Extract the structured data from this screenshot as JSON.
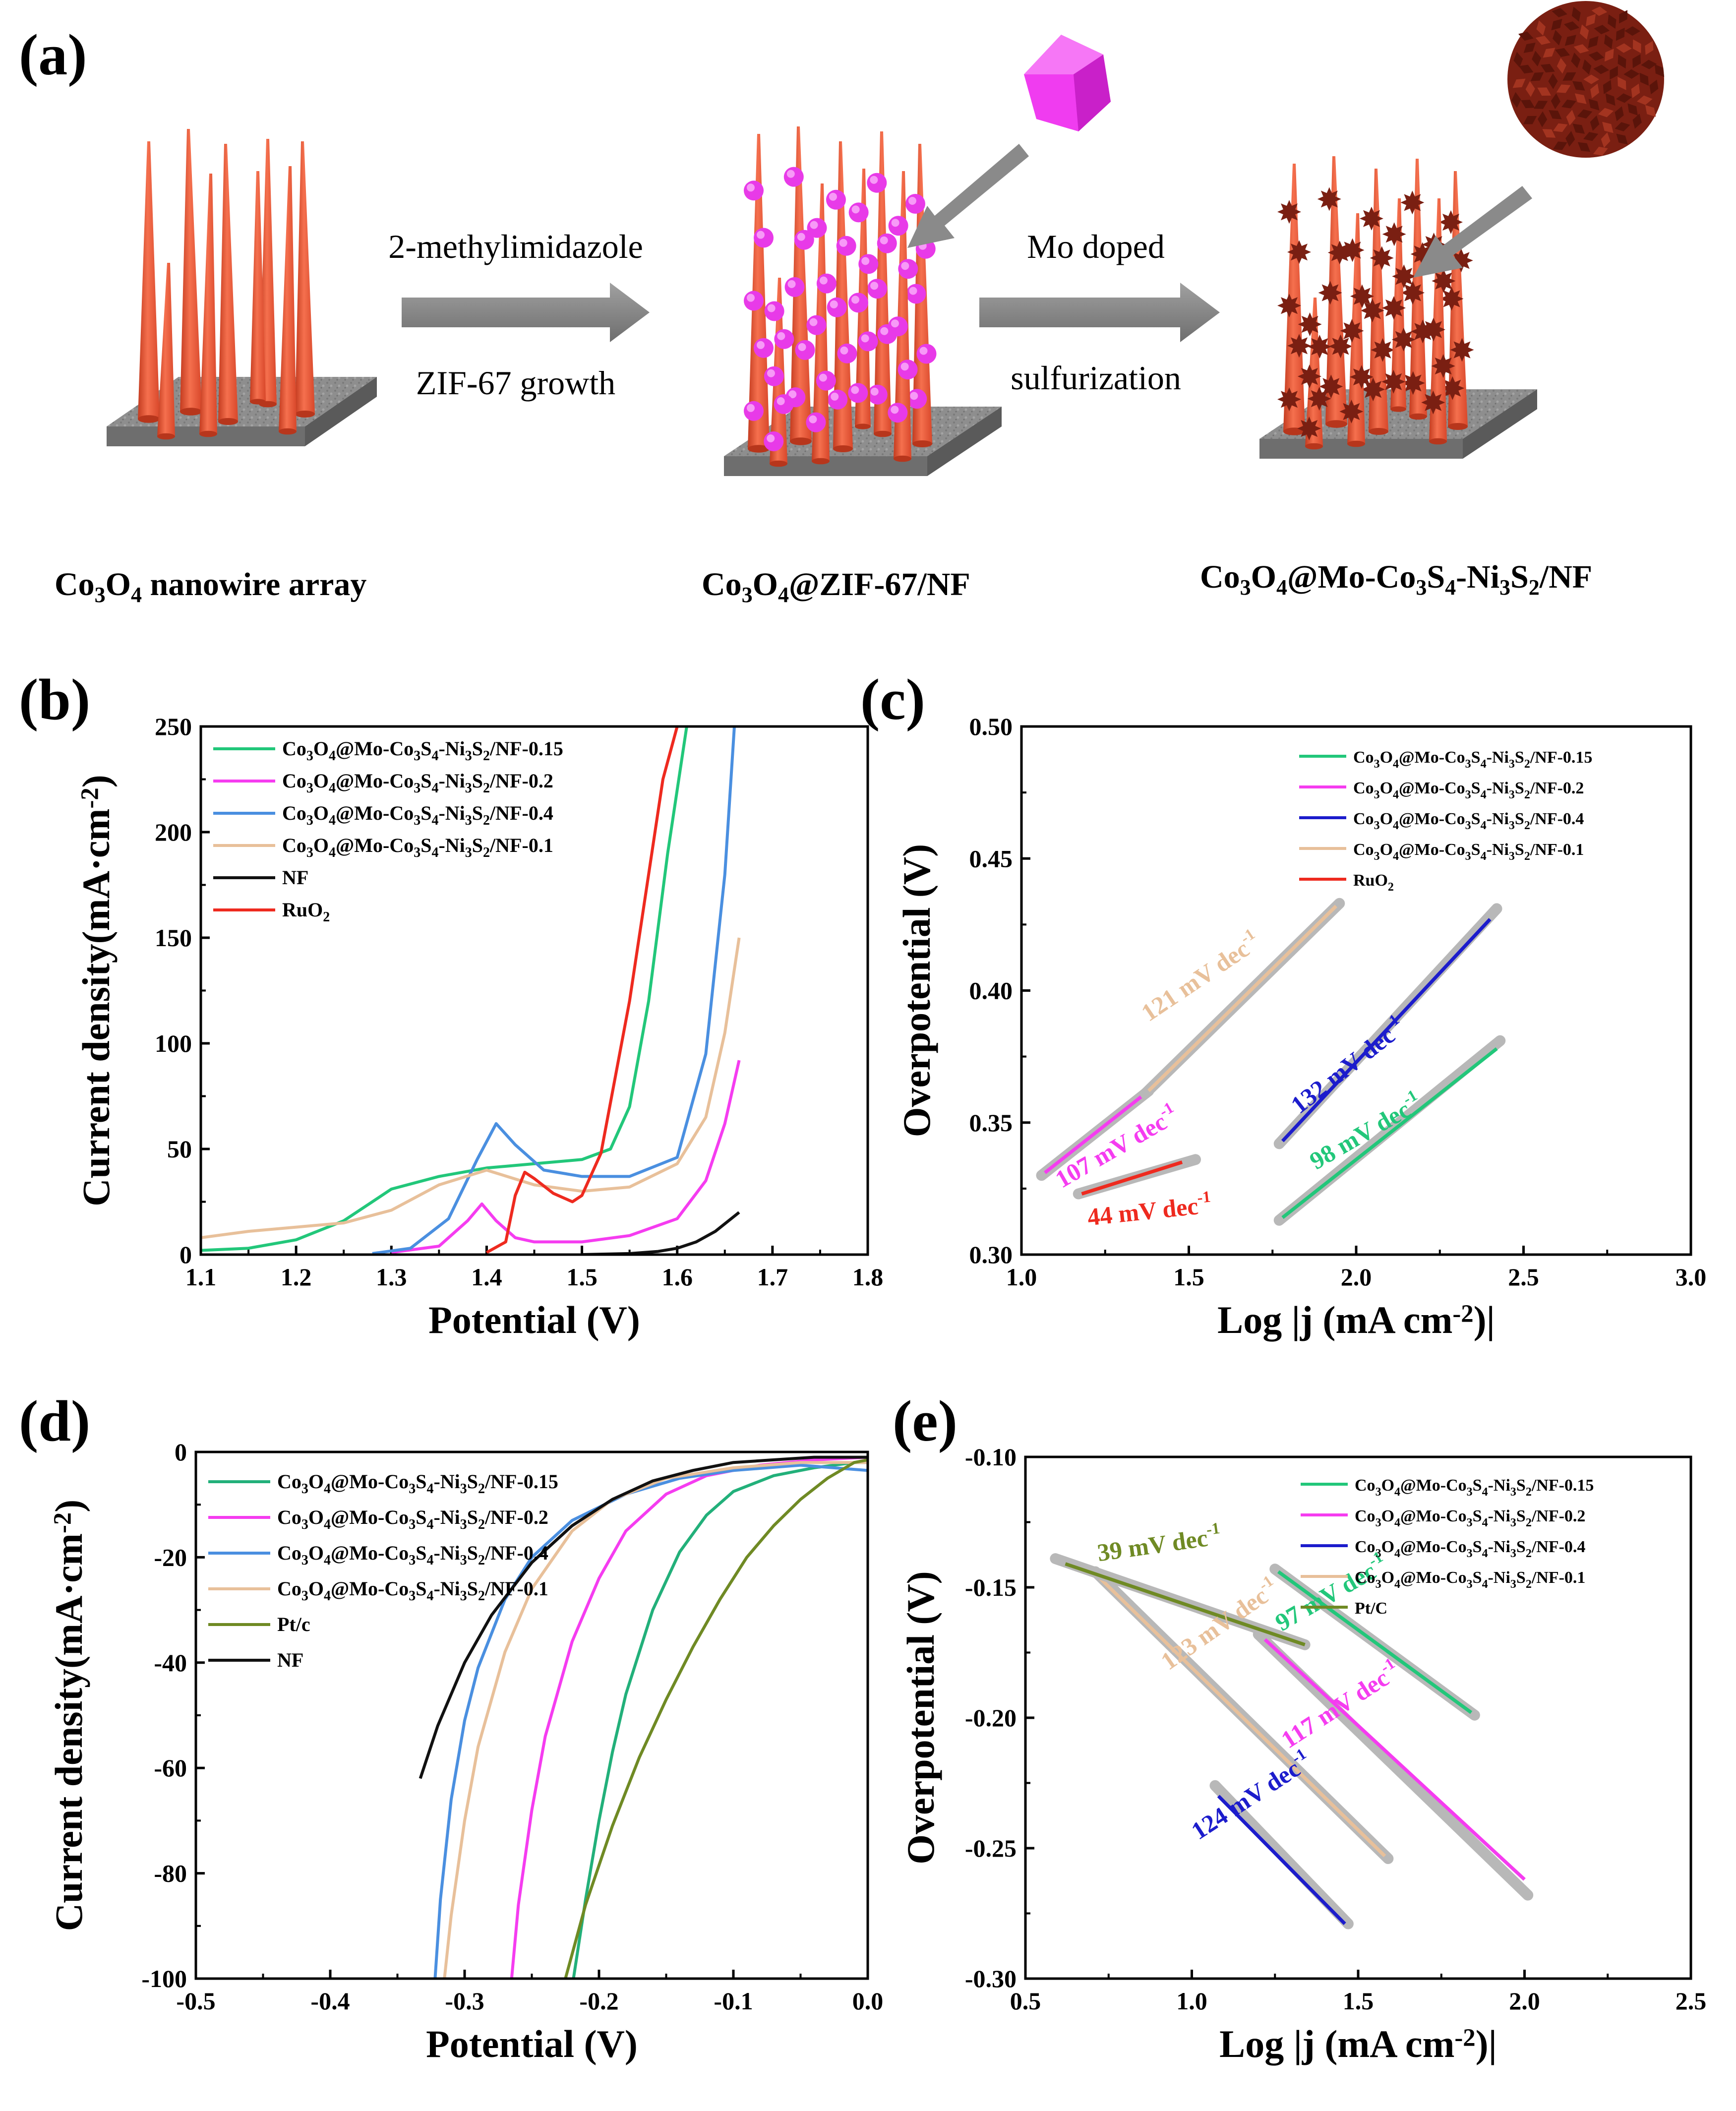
{
  "scheme": {
    "panel": "(a)",
    "label_1": "Co3O4 nanowire array",
    "label_2": "Co3O4@ZIF-67/NF",
    "label_3": "Co3O4@Mo-Co3S4-Ni3S2/NF",
    "arrow1_top": "2-methylimidazole",
    "arrow1_bottom": "ZIF-67 growth",
    "arrow2_top": "Mo doped",
    "arrow2_bottom": "sulfurization",
    "colors": {
      "nanowire": "#f0583a",
      "zif": "#f03cf0",
      "sulfide": "#7a1f12",
      "substrate": "#8f8f8f",
      "arrow": "#8a8a8a"
    }
  },
  "chart_data": [
    {
      "id": "b",
      "panel": "(b)",
      "type": "line",
      "xlabel": "Potential (V)",
      "ylabel": "Current density(mA·cm⁻²)",
      "xlim": [
        1.1,
        1.8
      ],
      "ylim": [
        0,
        250
      ],
      "xticks": [
        "1.1",
        "1.2",
        "1.3",
        "1.4",
        "1.5",
        "1.6",
        "1.7",
        "1.8"
      ],
      "yticks": [
        "0",
        "50",
        "100",
        "150",
        "200",
        "250"
      ],
      "legend_position": "top-left",
      "series": [
        {
          "name": "Co3O4@Mo-Co3S4-Ni3S2/NF-0.15",
          "color": "#22c77a",
          "x": [
            1.1,
            1.15,
            1.2,
            1.25,
            1.28,
            1.3,
            1.35,
            1.4,
            1.45,
            1.5,
            1.53,
            1.55,
            1.57,
            1.59,
            1.61
          ],
          "y": [
            2,
            3,
            7,
            16,
            25,
            31,
            37,
            41,
            43,
            45,
            50,
            70,
            120,
            190,
            250
          ]
        },
        {
          "name": "Co3O4@Mo-Co3S4-Ni3S2/NF-0.2",
          "color": "#f53cf0",
          "x": [
            1.3,
            1.35,
            1.38,
            1.395,
            1.41,
            1.43,
            1.45,
            1.5,
            1.55,
            1.6,
            1.63,
            1.65,
            1.665
          ],
          "y": [
            1,
            4,
            16,
            24,
            16,
            8,
            6,
            6,
            9,
            17,
            35,
            62,
            92
          ]
        },
        {
          "name": "Co3O4@Mo-Co3S4-Ni3S2/NF-0.4",
          "color": "#4a8fe0",
          "x": [
            1.28,
            1.32,
            1.36,
            1.39,
            1.41,
            1.43,
            1.46,
            1.5,
            1.55,
            1.6,
            1.63,
            1.65,
            1.66
          ],
          "y": [
            0.5,
            3,
            17,
            45,
            62,
            52,
            40,
            37,
            37,
            46,
            95,
            180,
            250
          ]
        },
        {
          "name": "Co3O4@Mo-Co3S4-Ni3S2/NF-0.1",
          "color": "#e8c09a",
          "x": [
            1.1,
            1.15,
            1.2,
            1.25,
            1.3,
            1.35,
            1.4,
            1.45,
            1.5,
            1.55,
            1.6,
            1.63,
            1.65,
            1.665
          ],
          "y": [
            8,
            11,
            13,
            15,
            21,
            33,
            40,
            33,
            30,
            32,
            43,
            65,
            105,
            150
          ]
        },
        {
          "name": "NF",
          "color": "#111111",
          "x": [
            1.5,
            1.55,
            1.58,
            1.6,
            1.62,
            1.64,
            1.665
          ],
          "y": [
            0,
            0.5,
            1.5,
            3,
            6,
            11,
            20
          ]
        },
        {
          "name": "RuO2",
          "color": "#ee2a1f",
          "x": [
            1.4,
            1.42,
            1.43,
            1.44,
            1.45,
            1.47,
            1.49,
            1.5,
            1.52,
            1.55,
            1.57,
            1.585,
            1.6
          ],
          "y": [
            1,
            6,
            28,
            39,
            36,
            29,
            25,
            28,
            48,
            120,
            180,
            225,
            250
          ]
        }
      ]
    },
    {
      "id": "c",
      "panel": "(c)",
      "type": "line",
      "xlabel": "Log |j (mA cm⁻²)|",
      "ylabel": "Overpotential (V)",
      "xlim": [
        1.0,
        3.0
      ],
      "ylim": [
        0.3,
        0.5
      ],
      "xticks": [
        "1.0",
        "1.5",
        "2.0",
        "2.5",
        "3.0"
      ],
      "yticks": [
        "0.30",
        "0.35",
        "0.40",
        "0.45",
        "0.50"
      ],
      "legend_position": "top-right",
      "series": [
        {
          "name": "Co3O4@Mo-Co3S4-Ni3S2/NF-0.15",
          "color": "#22c77a",
          "x": [
            1.78,
            2.42
          ],
          "y": [
            0.314,
            0.378
          ],
          "fit_x": [
            1.77,
            2.43
          ],
          "fit_y": [
            0.313,
            0.381
          ]
        },
        {
          "name": "Co3O4@Mo-Co3S4-Ni3S2/NF-0.2",
          "color": "#f53cf0",
          "x": [
            1.07,
            1.38
          ],
          "y": [
            0.331,
            0.362
          ],
          "fit_x": [
            1.06,
            1.38
          ],
          "fit_y": [
            0.33,
            0.362
          ]
        },
        {
          "name": "Co3O4@Mo-Co3S4-Ni3S2/NF-0.4",
          "color": "#1c1ccc",
          "x": [
            1.78,
            2.4
          ],
          "y": [
            0.343,
            0.427
          ],
          "fit_x": [
            1.77,
            2.42
          ],
          "fit_y": [
            0.342,
            0.431
          ]
        },
        {
          "name": "Co3O4@Mo-Co3S4-Ni3S2/NF-0.1",
          "color": "#e8c09a",
          "x": [
            1.38,
            1.94
          ],
          "y": [
            0.362,
            0.432
          ],
          "fit_x": [
            1.37,
            1.95
          ],
          "fit_y": [
            0.361,
            0.433
          ]
        },
        {
          "name": "RuO2",
          "color": "#ee2a1f",
          "x": [
            1.18,
            1.48
          ],
          "y": [
            0.323,
            0.335
          ],
          "fit_x": [
            1.17,
            1.52
          ],
          "fit_y": [
            0.323,
            0.336
          ]
        }
      ],
      "annotations": [
        {
          "text": "121 mV dec⁻¹",
          "x": 1.38,
          "y": 0.388,
          "angle": -34,
          "color": "#e8c09a"
        },
        {
          "text": "107 mV dec⁻¹",
          "x": 1.12,
          "y": 0.325,
          "angle": -30,
          "color": "#f53cf0"
        },
        {
          "text": "44 mV dec⁻¹",
          "x": 1.2,
          "y": 0.311,
          "angle": -6,
          "color": "#ee2a1f"
        },
        {
          "text": "132 mV dec⁻¹",
          "x": 1.83,
          "y": 0.353,
          "angle": -38,
          "color": "#1c1ccc"
        },
        {
          "text": "98 mV dec⁻¹",
          "x": 1.88,
          "y": 0.332,
          "angle": -30,
          "color": "#22c77a"
        }
      ]
    },
    {
      "id": "d",
      "panel": "(d)",
      "type": "line",
      "xlabel": "Potential (V)",
      "ylabel": "Current density(mA·cm⁻²)",
      "xlim": [
        -0.5,
        0.0
      ],
      "ylim": [
        -100,
        0
      ],
      "xticks": [
        "-0.5",
        "-0.4",
        "-0.3",
        "-0.2",
        "-0.1",
        "0.0"
      ],
      "yticks": [
        "-100",
        "-80",
        "-60",
        "-40",
        "-20",
        "0"
      ],
      "legend_position": "top-left",
      "series": [
        {
          "name": "Co3O4@Mo-Co3S4-Ni3S2/NF-0.15",
          "color": "#22b07a",
          "x": [
            -0.219,
            -0.21,
            -0.2,
            -0.19,
            -0.18,
            -0.16,
            -0.14,
            -0.12,
            -0.1,
            -0.07,
            -0.04,
            -0.01,
            0.0
          ],
          "y": [
            -100,
            -85,
            -70,
            -57,
            -46,
            -30,
            -19,
            -12,
            -7.5,
            -4.5,
            -3,
            -2,
            -2
          ]
        },
        {
          "name": "Co3O4@Mo-Co3S4-Ni3S2/NF-0.2",
          "color": "#f53cf0",
          "x": [
            -0.265,
            -0.26,
            -0.25,
            -0.24,
            -0.22,
            -0.2,
            -0.18,
            -0.15,
            -0.12,
            -0.08,
            -0.04,
            0.0
          ],
          "y": [
            -100,
            -86,
            -68,
            -54,
            -36,
            -24,
            -15,
            -8,
            -4.5,
            -2.5,
            -1.5,
            -1
          ]
        },
        {
          "name": "Co3O4@Mo-Co3S4-Ni3S2/NF-0.4",
          "color": "#4a8fe0",
          "x": [
            -0.322,
            -0.318,
            -0.31,
            -0.3,
            -0.29,
            -0.27,
            -0.25,
            -0.22,
            -0.18,
            -0.14,
            -0.1,
            -0.05,
            0.0
          ],
          "y": [
            -100,
            -85,
            -66,
            -51,
            -41,
            -28,
            -20,
            -13,
            -8,
            -5,
            -3.5,
            -2.5,
            -3.5
          ]
        },
        {
          "name": "Co3O4@Mo-Co3S4-Ni3S2/NF-0.1",
          "color": "#e8c09a",
          "x": [
            -0.315,
            -0.31,
            -0.3,
            -0.29,
            -0.27,
            -0.25,
            -0.22,
            -0.19,
            -0.15,
            -0.1,
            -0.05,
            0.0
          ],
          "y": [
            -100,
            -88,
            -70,
            -56,
            -38,
            -26,
            -15,
            -9,
            -5,
            -3,
            -2,
            -2
          ]
        },
        {
          "name": "Pt/c",
          "color": "#6f8a24",
          "x": [
            -0.225,
            -0.21,
            -0.19,
            -0.17,
            -0.15,
            -0.13,
            -0.11,
            -0.09,
            -0.07,
            -0.05,
            -0.03,
            -0.01,
            0.0
          ],
          "y": [
            -100,
            -86,
            -71,
            -58,
            -47,
            -37,
            -28,
            -20,
            -14,
            -9,
            -5,
            -2,
            -1.5
          ]
        },
        {
          "name": "NF",
          "color": "#111111",
          "x": [
            -0.333,
            -0.32,
            -0.3,
            -0.28,
            -0.25,
            -0.22,
            -0.19,
            -0.16,
            -0.13,
            -0.1,
            -0.07,
            -0.04,
            0.0
          ],
          "y": [
            -62,
            -52,
            -40,
            -31,
            -21,
            -14,
            -9,
            -5.5,
            -3.5,
            -2,
            -1.5,
            -1,
            -1
          ]
        }
      ]
    },
    {
      "id": "e",
      "panel": "(e)",
      "type": "line",
      "xlabel": "Log |j (mA cm⁻²)|",
      "ylabel": "Overpotential (V)",
      "xlim": [
        0.5,
        2.5
      ],
      "ylim": [
        -0.3,
        -0.1
      ],
      "xticks": [
        "0.5",
        "1.0",
        "1.5",
        "2.0",
        "2.5"
      ],
      "yticks": [
        "-0.30",
        "-0.25",
        "-0.20",
        "-0.15",
        "-0.10"
      ],
      "legend_position": "top-right",
      "series": [
        {
          "name": "Co3O4@Mo-Co3S4-Ni3S2/NF-0.15",
          "color": "#22c77a",
          "x": [
            1.26,
            1.84
          ],
          "y": [
            -0.144,
            -0.198
          ],
          "fit_x": [
            1.25,
            1.85
          ],
          "fit_y": [
            -0.143,
            -0.199
          ]
        },
        {
          "name": "Co3O4@Mo-Co3S4-Ni3S2/NF-0.2",
          "color": "#f53cf0",
          "x": [
            1.22,
            2.0
          ],
          "y": [
            -0.17,
            -0.262
          ],
          "fit_x": [
            1.2,
            2.01
          ],
          "fit_y": [
            -0.168,
            -0.268
          ]
        },
        {
          "name": "Co3O4@Mo-Co3S4-Ni3S2/NF-0.4",
          "color": "#1c1ccc",
          "x": [
            1.08,
            1.46
          ],
          "y": [
            -0.23,
            -0.279
          ],
          "fit_x": [
            1.07,
            1.47
          ],
          "fit_y": [
            -0.226,
            -0.279
          ]
        },
        {
          "name": "Co3O4@Mo-Co3S4-Ni3S2/NF-0.1",
          "color": "#e8c09a",
          "x": [
            0.72,
            1.58
          ],
          "y": [
            -0.146,
            -0.253
          ],
          "fit_x": [
            0.71,
            1.59
          ],
          "fit_y": [
            -0.144,
            -0.254
          ]
        },
        {
          "name": "Pt/C",
          "color": "#6f8a24",
          "x": [
            0.62,
            1.34
          ],
          "y": [
            -0.141,
            -0.172
          ],
          "fit_x": [
            0.59,
            1.34
          ],
          "fit_y": [
            -0.139,
            -0.172
          ]
        }
      ],
      "annotations": [
        {
          "text": "39 mV dec⁻¹",
          "x": 0.72,
          "y": -0.14,
          "angle": -8,
          "color": "#6f8a24"
        },
        {
          "text": "97 mV dec⁻¹",
          "x": 1.27,
          "y": -0.167,
          "angle": -30,
          "color": "#22c77a"
        },
        {
          "text": "123 mV dec⁻¹",
          "x": 0.93,
          "y": -0.182,
          "angle": -35,
          "color": "#e8c09a"
        },
        {
          "text": "117 mV dec⁻¹",
          "x": 1.29,
          "y": -0.212,
          "angle": -33,
          "color": "#f53cf0"
        },
        {
          "text": "124 mV dec⁻¹",
          "x": 1.02,
          "y": -0.247,
          "angle": -33,
          "color": "#1c1ccc"
        }
      ]
    }
  ]
}
